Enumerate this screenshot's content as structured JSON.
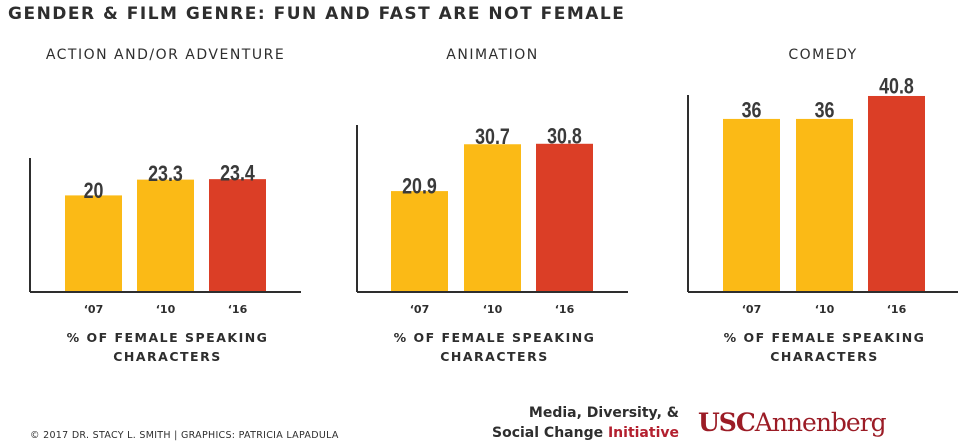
{
  "title": "GENDER & FILM GENRE: FUN AND FAST ARE NOT FEMALE",
  "colors": {
    "past": "#FBBA16",
    "latest": "#DB3E26",
    "axis": "#2e2e2e"
  },
  "chart_data": [
    {
      "type": "bar",
      "title": "ACTION AND/OR ADVENTURE",
      "categories": [
        "‘07",
        "‘10",
        "‘16"
      ],
      "values": [
        20,
        23.3,
        23.4
      ],
      "labels": [
        "20",
        "23.3",
        "23.4"
      ],
      "xlabel": "% OF FEMALE SPEAKING CHARACTERS",
      "grid": false
    },
    {
      "type": "bar",
      "title": "ANIMATION",
      "categories": [
        "‘07",
        "‘10",
        "‘16"
      ],
      "values": [
        20.9,
        30.7,
        30.8
      ],
      "labels": [
        "20.9",
        "30.7",
        "30.8"
      ],
      "xlabel": "% OF FEMALE SPEAKING CHARACTERS",
      "grid": false
    },
    {
      "type": "bar",
      "title": "COMEDY",
      "categories": [
        "‘07",
        "‘10",
        "‘16"
      ],
      "values": [
        36,
        36,
        40.8
      ],
      "labels": [
        "36",
        "36",
        "40.8"
      ],
      "xlabel": "% OF FEMALE SPEAKING CHARACTERS",
      "grid": false
    }
  ],
  "footer": {
    "credit": "© 2017 DR. STACY L. SMITH | GRAPHICS: PATRICIA LAPADULA",
    "initiative_line1": "Media, Diversity, &",
    "initiative_line2": "Social Change",
    "initiative_word": "Initiative",
    "usc": "USC",
    "annenberg": "Annenberg"
  }
}
